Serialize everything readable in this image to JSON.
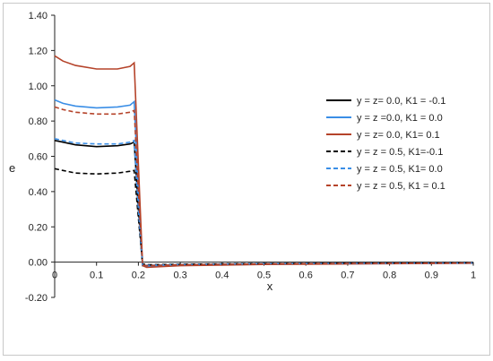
{
  "chart_data": {
    "type": "line",
    "title": "",
    "xlabel": "x",
    "ylabel": "e",
    "xlim": [
      0,
      1
    ],
    "ylim": [
      -0.2,
      1.4
    ],
    "x_ticks": [
      "0",
      "0.1",
      "0.2",
      "0.3",
      "0.4",
      "0.5",
      "0.6",
      "0.7",
      "0.8",
      "0.9",
      "1"
    ],
    "y_ticks": [
      "-0.20",
      "0.00",
      "0.20",
      "0.40",
      "0.60",
      "0.80",
      "1.00",
      "1.20",
      "1.40"
    ],
    "grid": false,
    "legend_position": "right",
    "series": [
      {
        "name": "y = z= 0.0, K1 = -0.1",
        "color": "#000000",
        "dash": "solid",
        "x": [
          0,
          0.02,
          0.05,
          0.1,
          0.15,
          0.18,
          0.19,
          0.2,
          0.21,
          0.22,
          0.3,
          0.5,
          0.7,
          1.0
        ],
        "y": [
          0.69,
          0.68,
          0.665,
          0.655,
          0.66,
          0.67,
          0.68,
          0.3,
          -0.02,
          -0.02,
          -0.015,
          -0.01,
          -0.008,
          -0.005
        ]
      },
      {
        "name": "y = z =0.0, K1 = 0.0",
        "color": "#3a8ee6",
        "dash": "solid",
        "x": [
          0,
          0.02,
          0.05,
          0.1,
          0.15,
          0.18,
          0.19,
          0.2,
          0.21,
          0.22,
          0.3,
          0.5,
          0.7,
          1.0
        ],
        "y": [
          0.92,
          0.9,
          0.885,
          0.875,
          0.88,
          0.89,
          0.91,
          0.4,
          -0.02,
          -0.025,
          -0.018,
          -0.012,
          -0.009,
          -0.006
        ]
      },
      {
        "name": "y = z= 0.0, K1= 0.1",
        "color": "#b5432a",
        "dash": "solid",
        "x": [
          0,
          0.02,
          0.05,
          0.1,
          0.15,
          0.18,
          0.19,
          0.2,
          0.21,
          0.22,
          0.3,
          0.5,
          0.7,
          1.0
        ],
        "y": [
          1.17,
          1.14,
          1.115,
          1.095,
          1.095,
          1.11,
          1.13,
          0.55,
          -0.02,
          -0.03,
          -0.02,
          -0.013,
          -0.01,
          -0.006
        ]
      },
      {
        "name": "y = z = 0.5, K1=-0.1",
        "color": "#000000",
        "dash": "dashed",
        "x": [
          0,
          0.02,
          0.05,
          0.1,
          0.15,
          0.18,
          0.19,
          0.2,
          0.21,
          0.22,
          0.3,
          0.5,
          0.7,
          1.0
        ],
        "y": [
          0.53,
          0.52,
          0.505,
          0.5,
          0.505,
          0.515,
          0.52,
          0.25,
          -0.01,
          -0.015,
          -0.012,
          -0.008,
          -0.006,
          -0.004
        ]
      },
      {
        "name": "y = z = 0.5, K1= 0.0",
        "color": "#3a8ee6",
        "dash": "dashed",
        "x": [
          0,
          0.02,
          0.05,
          0.1,
          0.15,
          0.18,
          0.19,
          0.2,
          0.21,
          0.22,
          0.3,
          0.5,
          0.7,
          1.0
        ],
        "y": [
          0.7,
          0.69,
          0.675,
          0.67,
          0.67,
          0.68,
          0.69,
          0.3,
          -0.015,
          -0.018,
          -0.014,
          -0.009,
          -0.007,
          -0.005
        ]
      },
      {
        "name": "y = z = 0.5, K1 = 0.1",
        "color": "#b5432a",
        "dash": "dashed",
        "x": [
          0,
          0.02,
          0.05,
          0.1,
          0.15,
          0.18,
          0.19,
          0.2,
          0.21,
          0.22,
          0.3,
          0.5,
          0.7,
          1.0
        ],
        "y": [
          0.88,
          0.865,
          0.85,
          0.84,
          0.84,
          0.85,
          0.86,
          0.4,
          -0.015,
          -0.02,
          -0.015,
          -0.01,
          -0.007,
          -0.005
        ]
      }
    ]
  }
}
